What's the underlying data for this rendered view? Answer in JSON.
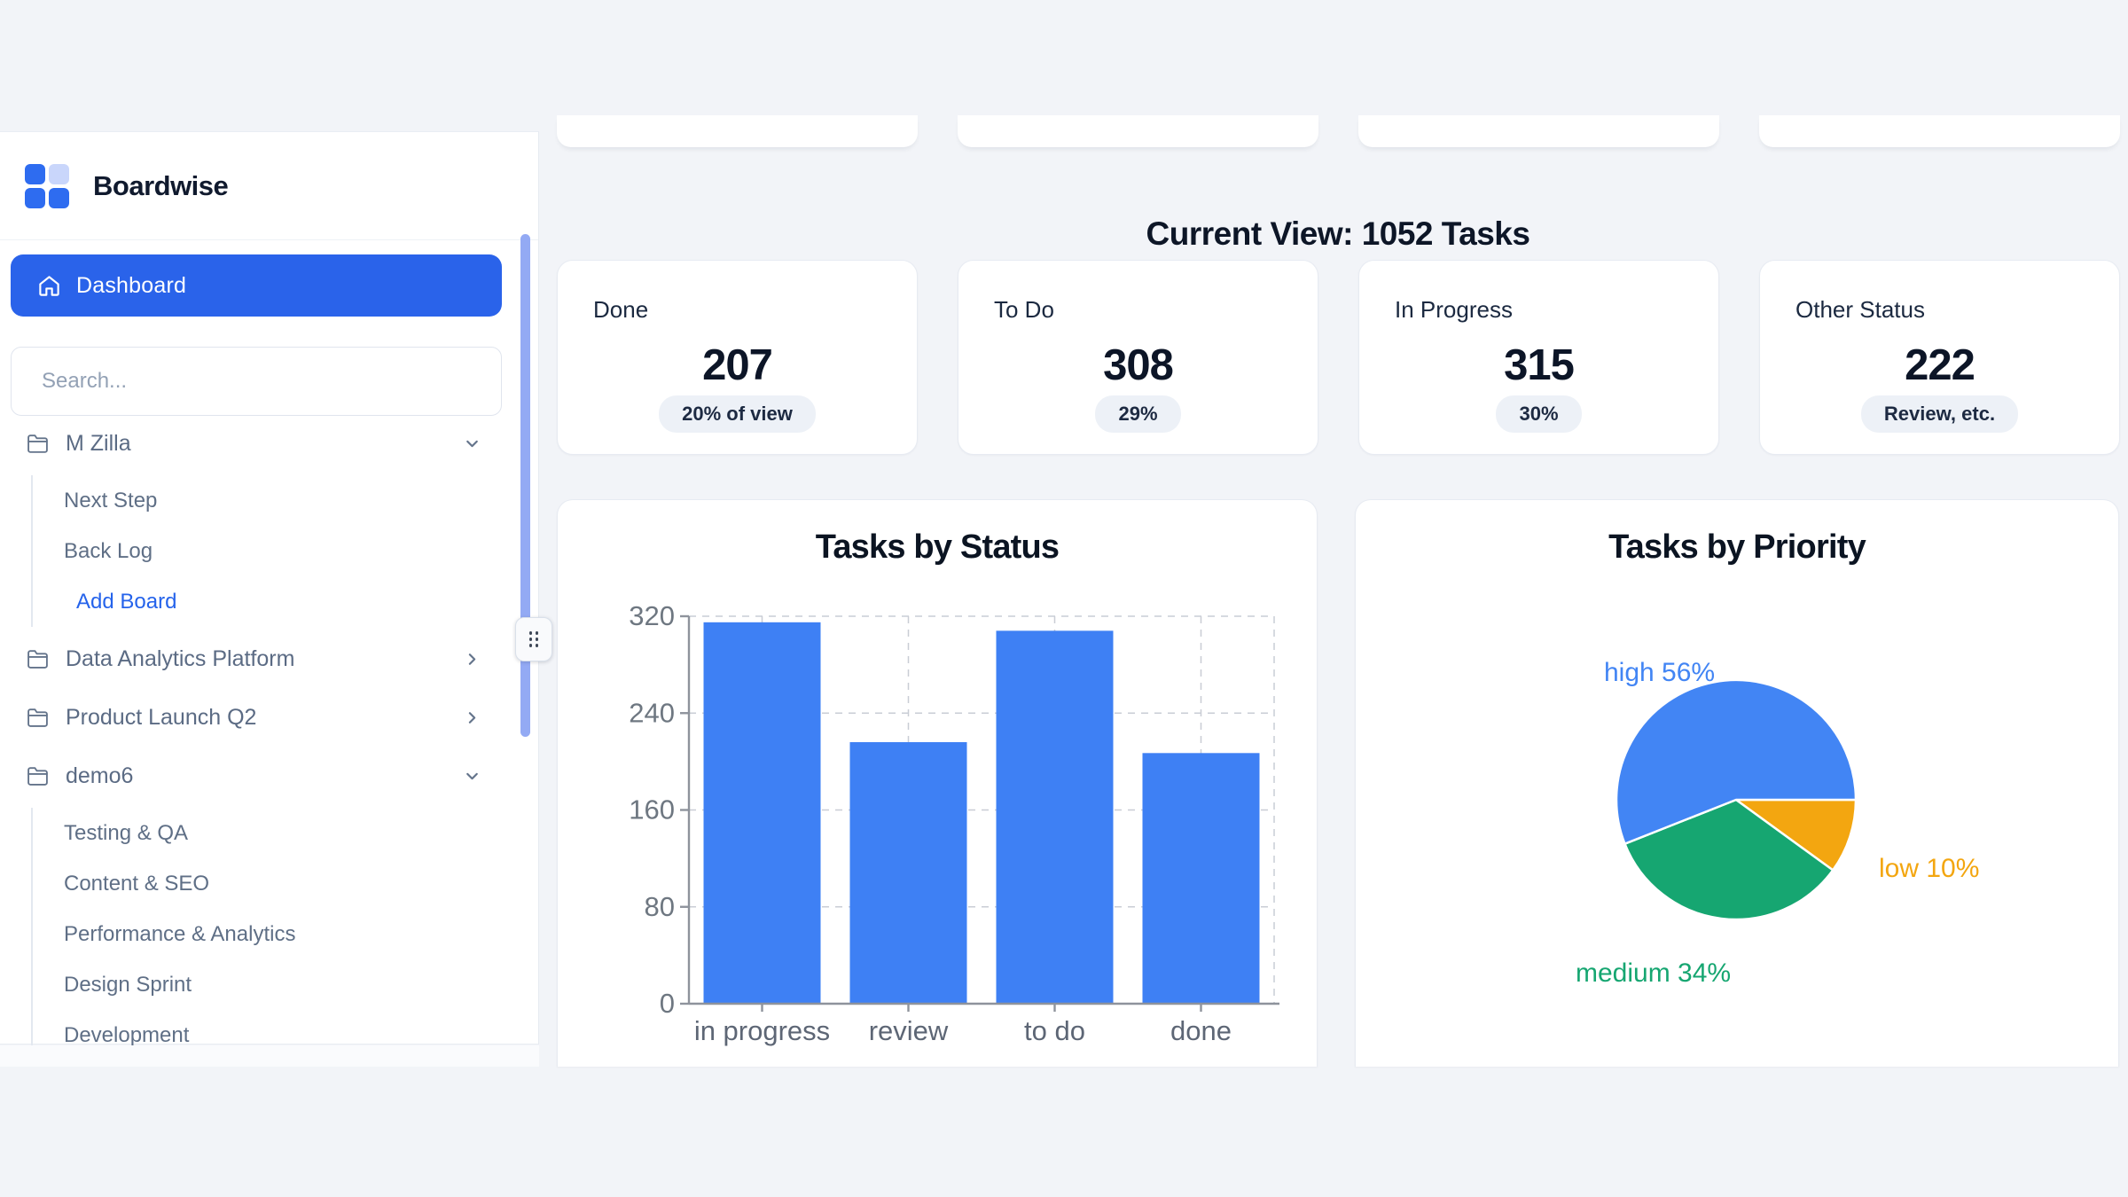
{
  "app": {
    "title": "Boardwise"
  },
  "sidebar": {
    "nav_dashboard": "Dashboard",
    "search_placeholder": "Search...",
    "boards": [
      {
        "label": "M Zilla",
        "expanded": true,
        "children": [
          "Next Step",
          "Back Log"
        ],
        "add_action": "Add Board"
      },
      {
        "label": "Data Analytics Platform",
        "expanded": false
      },
      {
        "label": "Product Launch Q2",
        "expanded": false
      },
      {
        "label": "demo6",
        "expanded": true,
        "children": [
          "Testing & QA",
          "Content & SEO",
          "Performance & Analytics",
          "Design Sprint",
          "Development"
        ]
      }
    ]
  },
  "main": {
    "heading": "Current View: 1052 Tasks",
    "stat_cards": [
      {
        "label": "Done",
        "value": "207",
        "badge": "20% of view"
      },
      {
        "label": "To Do",
        "value": "308",
        "badge": "29%"
      },
      {
        "label": "In Progress",
        "value": "315",
        "badge": "30%"
      },
      {
        "label": "Other Status",
        "value": "222",
        "badge": "Review, etc."
      }
    ]
  },
  "chart_data": [
    {
      "type": "bar",
      "title": "Tasks by Status",
      "categories": [
        "in progress",
        "review",
        "to do",
        "done"
      ],
      "values": [
        315,
        216,
        308,
        207
      ],
      "xlabel": "",
      "ylabel": "",
      "ylim": [
        0,
        320
      ],
      "yticks": [
        0,
        80,
        160,
        240,
        320
      ],
      "grid": "dashed",
      "legend": "none",
      "bar_color": "#3e80f4",
      "axis_color": "#8e939c",
      "ytick_label_color": "#6e7781",
      "xtick_label_color": "#5d6675"
    },
    {
      "type": "pie",
      "title": "Tasks by Priority",
      "start": "3-oclock",
      "direction": "clockwise",
      "slices": [
        {
          "name": "low",
          "pct": 10,
          "display": "low 10%",
          "color": "#f3a610"
        },
        {
          "name": "medium",
          "pct": 34,
          "display": "medium 34%",
          "color": "#16a671"
        },
        {
          "name": "high",
          "pct": 56,
          "display": "high 56%",
          "color": "#4285f4"
        }
      ]
    }
  ],
  "colors": {
    "accent": "#2a63ea",
    "page_bg": "#f2f4f8",
    "scrollbar_thumb": "#93aaf4",
    "add_action_link": "#2563eb",
    "logo_blue": "#2e6cf0",
    "logo_light_blue": "#c9d6fb"
  }
}
